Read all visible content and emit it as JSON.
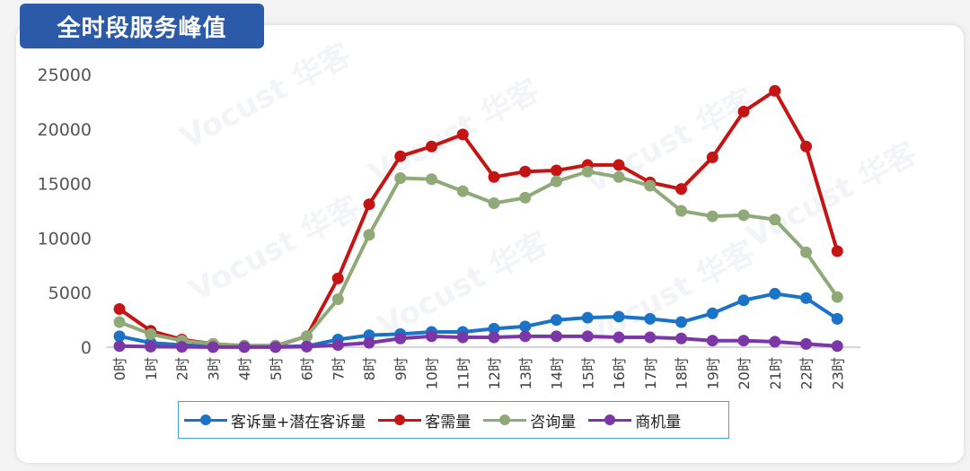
{
  "title": "全时段服务峰值",
  "watermark": "Vocust 华客",
  "chart_data": {
    "type": "line",
    "title": "全时段服务峰值",
    "categories": [
      "0时",
      "1时",
      "2时",
      "3时",
      "4时",
      "5时",
      "6时",
      "7时",
      "8时",
      "9时",
      "10时",
      "11时",
      "12时",
      "13时",
      "14时",
      "15时",
      "16时",
      "17时",
      "18时",
      "19时",
      "20时",
      "21时",
      "22时",
      "23时"
    ],
    "ylim": [
      0,
      25000
    ],
    "yticks": [
      0,
      5000,
      10000,
      15000,
      20000,
      25000
    ],
    "grid": false,
    "legend_position": "bottom",
    "series": [
      {
        "name": "客诉量+潜在客诉量",
        "color": "#1a73c7",
        "values": [
          1000,
          400,
          200,
          100,
          50,
          50,
          100,
          700,
          1100,
          1200,
          1400,
          1400,
          1700,
          1900,
          2500,
          2700,
          2800,
          2600,
          2300,
          3100,
          4300,
          4900,
          4500,
          2600
        ]
      },
      {
        "name": "客需量",
        "color": "#c41414",
        "values": [
          3500,
          1500,
          700,
          300,
          100,
          100,
          1000,
          6300,
          13100,
          17500,
          18400,
          19500,
          15600,
          16100,
          16200,
          16700,
          16700,
          15100,
          14500,
          17400,
          21600,
          23500,
          18400,
          8800
        ]
      },
      {
        "name": "咨询量",
        "color": "#8faa78",
        "values": [
          2300,
          1200,
          600,
          300,
          150,
          150,
          1000,
          4400,
          10300,
          15500,
          15400,
          14300,
          13200,
          13700,
          15200,
          16100,
          15600,
          14800,
          12500,
          12000,
          12100,
          11700,
          8700,
          4600
        ]
      },
      {
        "name": "商机量",
        "color": "#7b36a8",
        "values": [
          100,
          50,
          30,
          10,
          10,
          10,
          50,
          200,
          400,
          800,
          1000,
          900,
          900,
          1000,
          1000,
          1000,
          900,
          900,
          800,
          600,
          600,
          500,
          300,
          100
        ]
      }
    ]
  }
}
